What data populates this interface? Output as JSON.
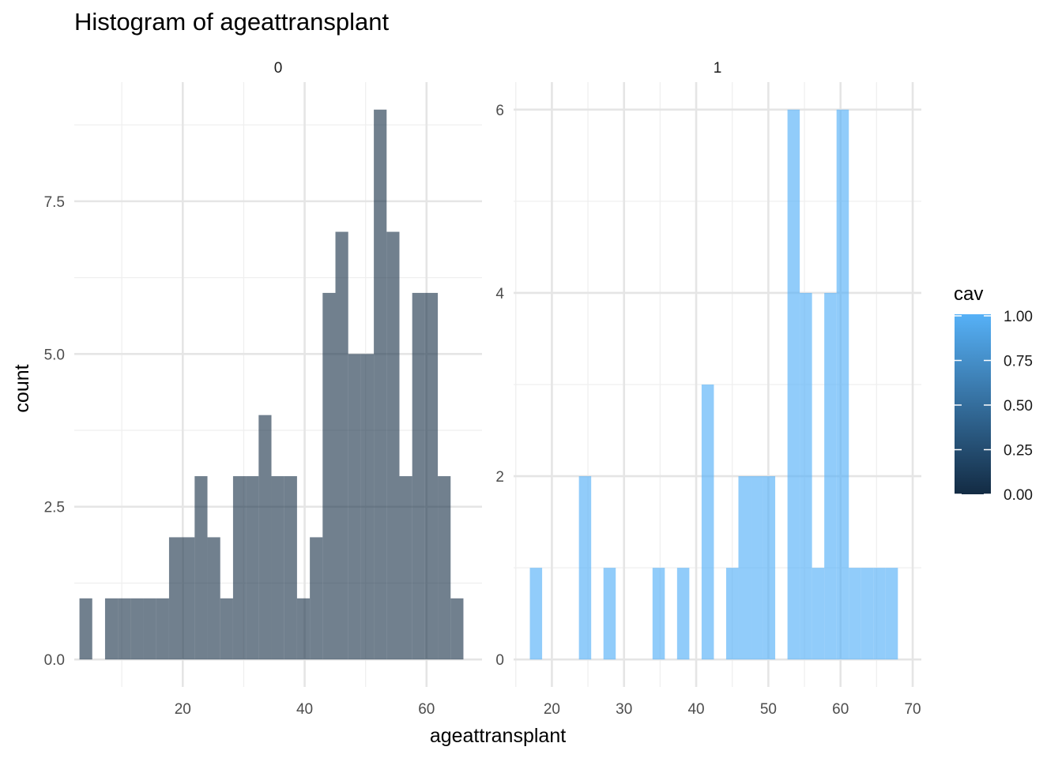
{
  "chart_data": {
    "type": "bar",
    "title": "Histogram of ageattransplant",
    "xlabel": "ageattransplant",
    "ylabel": "count",
    "grid": true,
    "legend": {
      "title": "cav",
      "position": "right",
      "type": "colorbar",
      "labels": [
        "1.00",
        "0.75",
        "0.50",
        "0.25",
        "0.00"
      ],
      "values": [
        1.0,
        0.75,
        0.5,
        0.25,
        0.0
      ],
      "color_low": "#132b43",
      "color_high": "#56b1f7"
    },
    "panels": [
      {
        "facet_label": "0",
        "cav": 0,
        "fill_color": "#132b43",
        "xlim": [
          2.2,
          69.1
        ],
        "ylim": [
          -0.45,
          9.45
        ],
        "xticks": [
          20,
          40,
          60
        ],
        "xtick_labels": [
          "20",
          "40",
          "60"
        ],
        "yticks": [
          0,
          2.5,
          5.0,
          7.5
        ],
        "ytick_labels": [
          "0.0",
          "2.5",
          "5.0",
          "7.5"
        ],
        "bin_width": 2.1,
        "bin_start": 3.05,
        "counts": [
          1,
          0,
          1,
          1,
          1,
          1,
          1,
          2,
          2,
          3,
          2,
          1,
          3,
          3,
          4,
          3,
          3,
          1,
          2,
          6,
          7,
          5,
          5,
          9,
          7,
          3,
          6,
          6,
          3,
          1
        ]
      },
      {
        "facet_label": "1",
        "cav": 1,
        "fill_color": "#56b1f7",
        "xlim": [
          14.7,
          71.2
        ],
        "ylim": [
          -0.3,
          6.3
        ],
        "xticks": [
          20,
          30,
          40,
          50,
          60,
          70
        ],
        "xtick_labels": [
          "20",
          "30",
          "40",
          "50",
          "60",
          "70"
        ],
        "yticks": [
          0,
          2,
          4,
          6
        ],
        "ytick_labels": [
          "0",
          "2",
          "4",
          "6"
        ],
        "bin_width": 1.7,
        "bin_start": 16.95,
        "counts": [
          1,
          0,
          0,
          0,
          2,
          0,
          1,
          0,
          0,
          0,
          1,
          0,
          1,
          0,
          3,
          0,
          1,
          2,
          2,
          2,
          0,
          6,
          4,
          1,
          4,
          6,
          1,
          1,
          1,
          1
        ]
      }
    ]
  }
}
